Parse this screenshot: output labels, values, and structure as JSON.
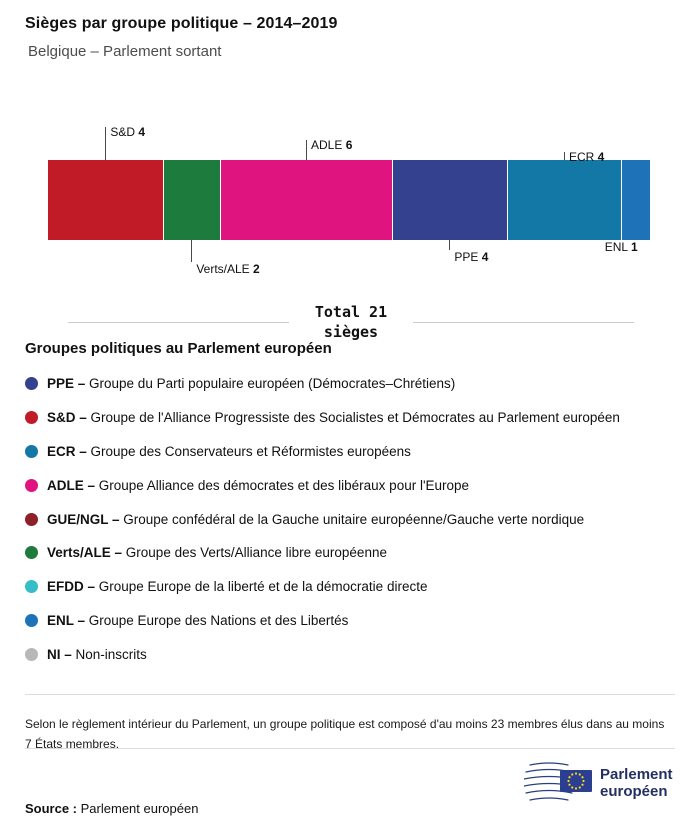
{
  "header": {
    "title": "Sièges par groupe politique – 2014–2019",
    "subtitle": "Belgique – Parlement sortant"
  },
  "chart_data": {
    "type": "bar",
    "subtype": "horizontal-stacked-seat-bar",
    "title": "Sièges par groupe politique – 2014–2019",
    "subtitle": "Belgique – Parlement sortant",
    "total_seats": 21,
    "total_caption_line1": "Total 21",
    "total_caption_line2": "sièges",
    "legend_position": "below",
    "segments": [
      {
        "group": "S&D",
        "value": 4,
        "color": "#c01b27",
        "label_side": "above",
        "leader_len": 33
      },
      {
        "group": "Verts/ALE",
        "value": 2,
        "color": "#1c7b3d",
        "label_side": "below",
        "leader_len": 22
      },
      {
        "group": "ADLE",
        "value": 6,
        "color": "#e0147e",
        "label_side": "above",
        "leader_len": 20
      },
      {
        "group": "PPE",
        "value": 4,
        "color": "#33418f",
        "label_side": "below",
        "leader_len": 10
      },
      {
        "group": "ECR",
        "value": 4,
        "color": "#1478a6",
        "label_side": "above",
        "leader_len": 8
      },
      {
        "group": "ENL",
        "value": 1,
        "color": "#1e73b8",
        "label_side": "below",
        "leader_len": 0,
        "align": "right"
      }
    ]
  },
  "total": {
    "line1": "Total 21",
    "line2": "sièges"
  },
  "legend": {
    "heading": "Groupes politiques au Parlement européen",
    "items": [
      {
        "abbr": "PPE",
        "text": "Groupe du Parti populaire européen (Démocrates–Chrétiens)",
        "color": "#33418f"
      },
      {
        "abbr": "S&D",
        "text": "Groupe de l'Alliance Progressiste des Socialistes et Démocrates au Parlement européen",
        "color": "#c01b27"
      },
      {
        "abbr": "ECR",
        "text": "Groupe des Conservateurs et Réformistes européens",
        "color": "#1478a6"
      },
      {
        "abbr": "ADLE",
        "text": "Groupe Alliance des démocrates et des libéraux pour l'Europe",
        "color": "#e0147e"
      },
      {
        "abbr": "GUE/NGL",
        "text": "Groupe confédéral de la Gauche unitaire européenne/Gauche verte nordique",
        "color": "#8d2029"
      },
      {
        "abbr": "Verts/ALE",
        "text": "Groupe des Verts/Alliance libre européenne",
        "color": "#1c7b3d"
      },
      {
        "abbr": "EFDD",
        "text": "Groupe Europe de la liberté et de la démocratie directe",
        "color": "#35bdc8"
      },
      {
        "abbr": "ENL",
        "text": "Groupe Europe des Nations et des Libertés",
        "color": "#1e73b8"
      },
      {
        "abbr": "NI",
        "text": "Non-inscrits",
        "color": "#b8b8b8"
      }
    ]
  },
  "footnote": "Selon le règlement intérieur du Parlement, un groupe politique est composé d'au moins 23 membres élus dans au moins 7 États membres.",
  "footer": {
    "source_label": "Source :",
    "source_text": "Parlement européen",
    "logo": {
      "line1": "Parlement",
      "line2": "européen"
    }
  }
}
